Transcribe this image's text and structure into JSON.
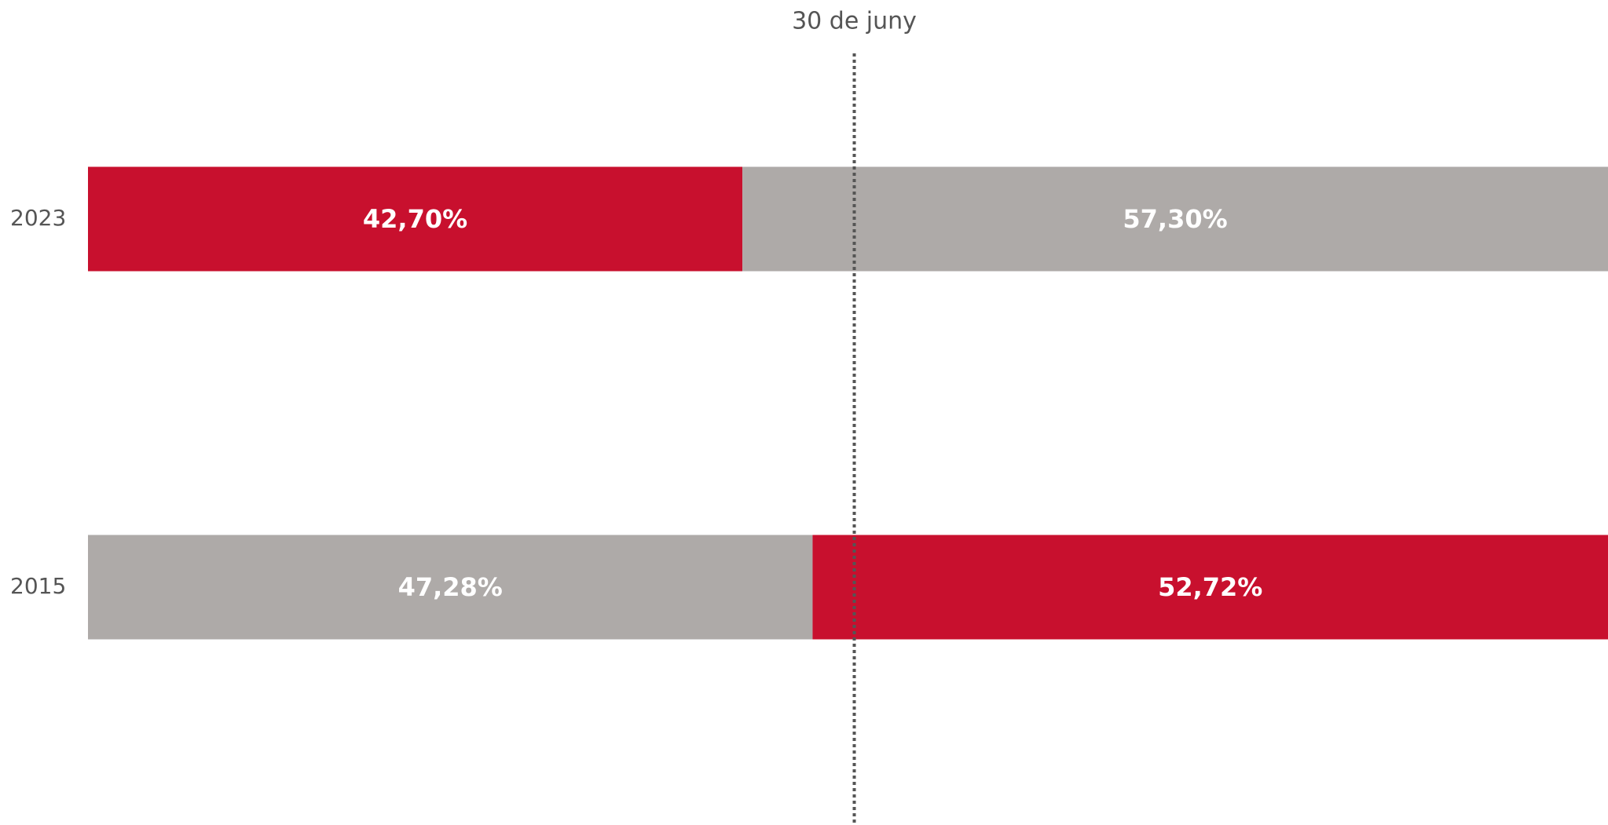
{
  "chart_data": {
    "type": "stacked-bar-horizontal",
    "categories": [
      "2023",
      "2015"
    ],
    "series": [
      {
        "values": [
          42.7,
          47.28
        ],
        "value_labels": [
          "42,70%",
          "47,28%"
        ],
        "colors": [
          "#c8102e",
          "#aeaaa8"
        ]
      },
      {
        "values": [
          57.3,
          52.72
        ],
        "value_labels": [
          "57,30%",
          "52,72%"
        ],
        "colors": [
          "#aeaaa8",
          "#c8102e"
        ]
      }
    ],
    "xlim": [
      0,
      100
    ],
    "reference_line": {
      "value": 50,
      "label": "30 de juny",
      "color": "#555555"
    }
  }
}
